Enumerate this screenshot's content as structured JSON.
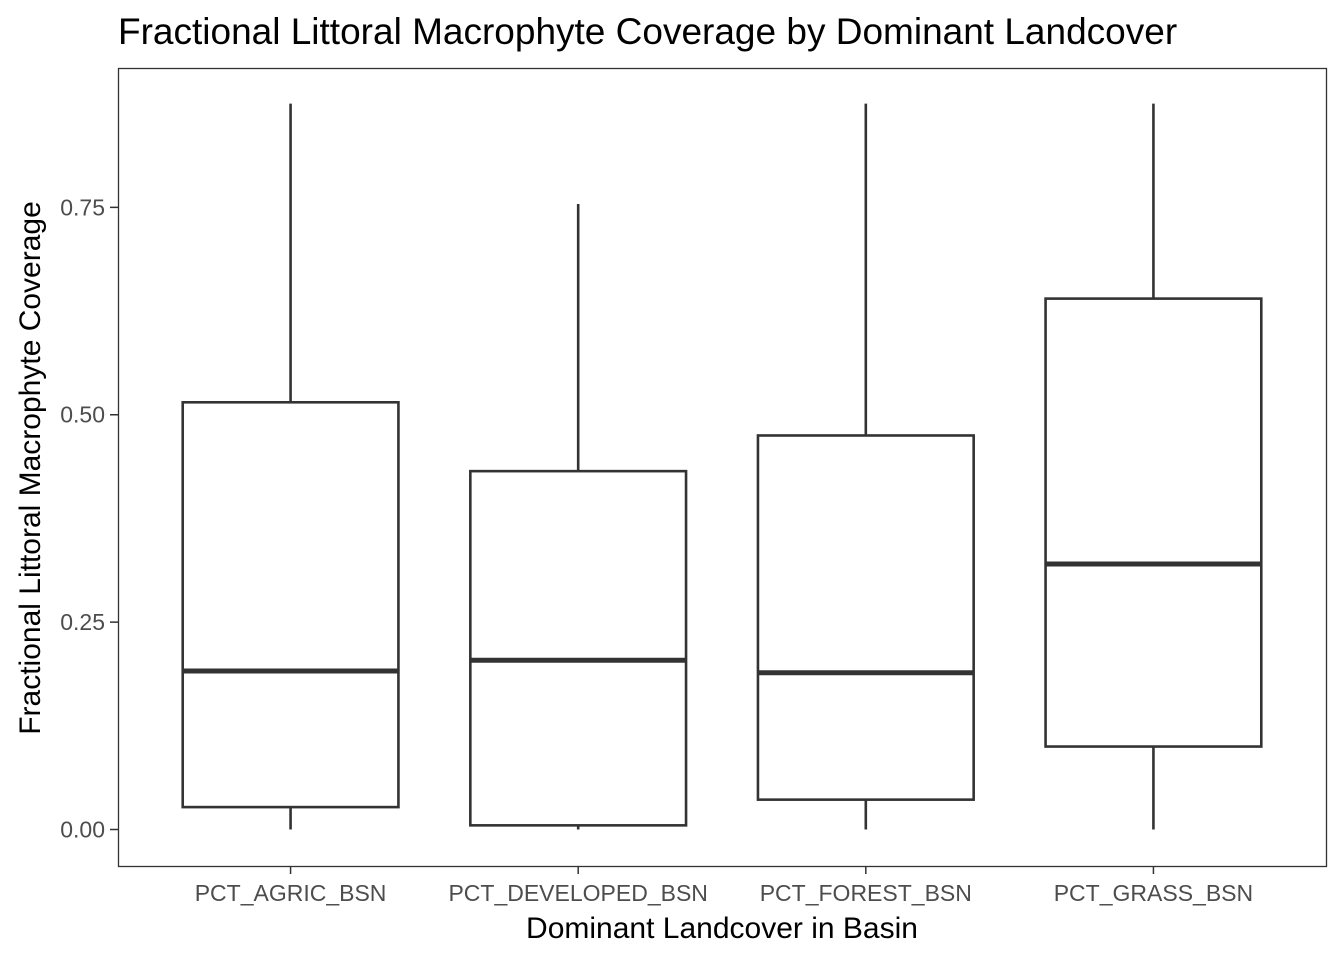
{
  "chart_data": {
    "type": "boxplot",
    "title": "Fractional Littoral Macrophyte Coverage by Dominant Landcover",
    "xlabel": "Dominant Landcover in Basin",
    "ylabel": "Fractional Littoral Macrophyte Coverage",
    "categories": [
      "PCT_AGRIC_BSN",
      "PCT_DEVELOPED_BSN",
      "PCT_FOREST_BSN",
      "PCT_GRASS_BSN"
    ],
    "boxes": [
      {
        "category": "PCT_AGRIC_BSN",
        "whisker_low": 0.0,
        "q1": 0.027,
        "median": 0.191,
        "q3": 0.515,
        "whisker_high": 0.875
      },
      {
        "category": "PCT_DEVELOPED_BSN",
        "whisker_low": 0.0,
        "q1": 0.005,
        "median": 0.204,
        "q3": 0.432,
        "whisker_high": 0.754
      },
      {
        "category": "PCT_FOREST_BSN",
        "whisker_low": 0.0,
        "q1": 0.036,
        "median": 0.189,
        "q3": 0.475,
        "whisker_high": 0.875
      },
      {
        "category": "PCT_GRASS_BSN",
        "whisker_low": 0.0,
        "q1": 0.1,
        "median": 0.32,
        "q3": 0.64,
        "whisker_high": 0.875
      }
    ],
    "yticks": [
      0.0,
      0.25,
      0.5,
      0.75
    ],
    "ytick_labels": [
      "0.00",
      "0.25",
      "0.50",
      "0.75"
    ],
    "ylim": [
      -0.044,
      0.918
    ],
    "grid": false,
    "colors": {
      "box_stroke": "#333333",
      "panel_border": "#333333",
      "tick_text": "#4d4d4d",
      "text": "#000000"
    }
  }
}
